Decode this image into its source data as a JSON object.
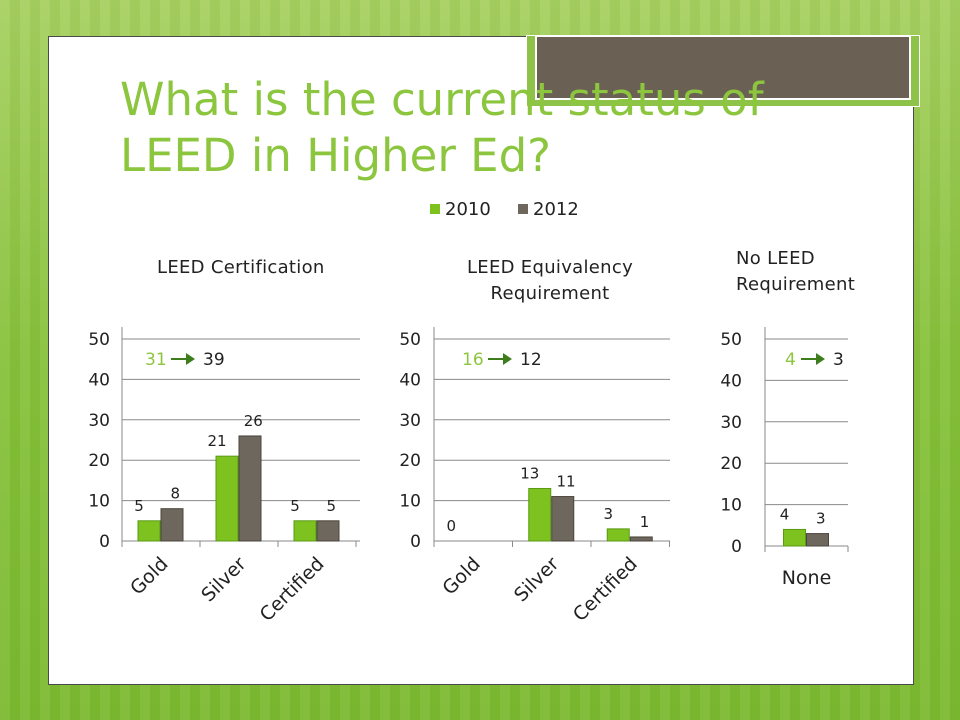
{
  "title": "What is the current status of LEED in Higher Ed?",
  "colors": {
    "accent": "#8cc63f",
    "series2010": "#7ec21f",
    "series2012": "#6e675d",
    "summary_text": "#8cc63f",
    "arrow": "#3e7d1c"
  },
  "legend": [
    "2010",
    "2012"
  ],
  "chart_data": [
    {
      "type": "bar",
      "title": "LEED Certification",
      "categories": [
        "Gold",
        "Silver",
        "Certified"
      ],
      "series": [
        {
          "name": "2010",
          "values": [
            5,
            21,
            5
          ]
        },
        {
          "name": "2012",
          "values": [
            8,
            26,
            5
          ]
        }
      ],
      "ylim": [
        0,
        50
      ],
      "yticks": [
        "0",
        "10",
        "20",
        "30",
        "40",
        "50"
      ],
      "grid": true,
      "data_labels": [
        [
          "5",
          "21",
          "5"
        ],
        [
          "8",
          "26",
          "5"
        ]
      ],
      "annotation": {
        "from": "31",
        "to": "39"
      }
    },
    {
      "type": "bar",
      "title": "LEED Equivalency Requirement",
      "categories": [
        "Gold",
        "Silver",
        "Certified"
      ],
      "series": [
        {
          "name": "2010",
          "values": [
            0,
            13,
            3
          ]
        },
        {
          "name": "2012",
          "values": [
            0,
            11,
            1
          ]
        }
      ],
      "ylim": [
        0,
        50
      ],
      "yticks": [
        "0",
        "10",
        "20",
        "30",
        "40",
        "50"
      ],
      "grid": true,
      "data_labels": [
        [
          "0",
          "13",
          "3"
        ],
        [
          "",
          "11",
          "1"
        ]
      ],
      "annotation": {
        "from": "16",
        "to": "12"
      }
    },
    {
      "type": "bar",
      "title": "No LEED Requirement",
      "categories": [
        "None"
      ],
      "series": [
        {
          "name": "2010",
          "values": [
            4
          ]
        },
        {
          "name": "2012",
          "values": [
            3
          ]
        }
      ],
      "ylim": [
        0,
        50
      ],
      "yticks": [
        "0",
        "10",
        "20",
        "30",
        "40",
        "50"
      ],
      "grid": true,
      "data_labels": [
        [
          "4"
        ],
        [
          "3"
        ]
      ],
      "annotation": {
        "from": "4",
        "to": "3"
      }
    }
  ]
}
